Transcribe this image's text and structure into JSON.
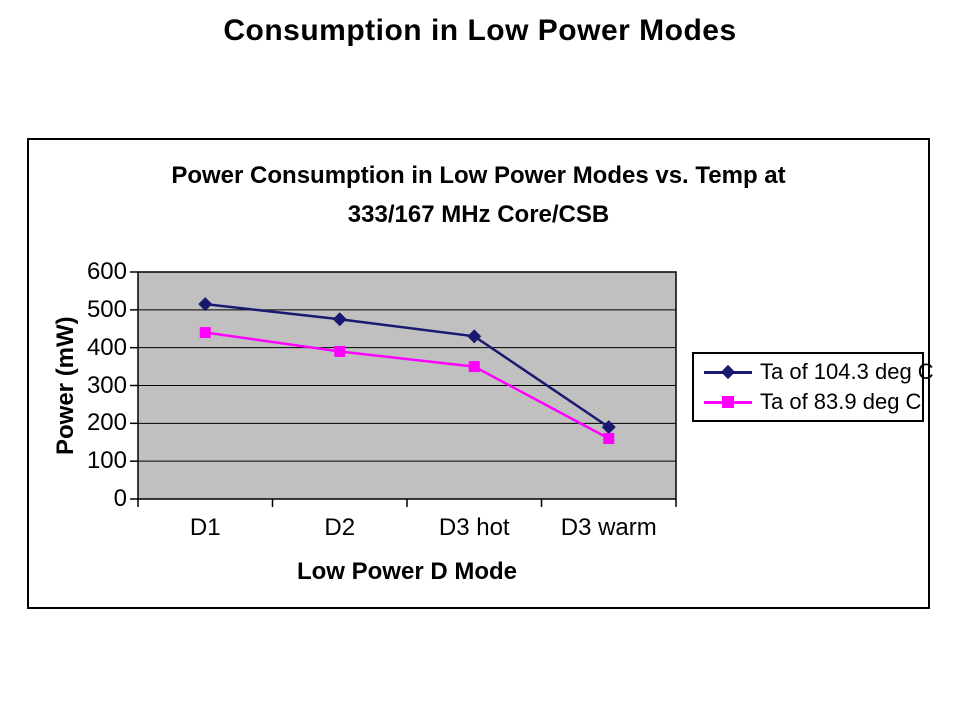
{
  "page_title": "Consumption in Low Power Modes",
  "chart_data": {
    "type": "line",
    "title_line1": "Power Consumption in Low Power Modes vs. Temp at",
    "title_line2": "333/167 MHz Core/CSB",
    "xlabel": "Low Power D Mode",
    "ylabel": "Power (mW)",
    "categories": [
      "D1",
      "D2",
      "D3 hot",
      "D3 warm"
    ],
    "series": [
      {
        "name": "Ta of 104.3 deg C",
        "color": "#191970",
        "marker": "diamond",
        "values": [
          515,
          475,
          430,
          190
        ]
      },
      {
        "name": "Ta of 83.9 deg C",
        "color": "#FF00FF",
        "marker": "square",
        "values": [
          440,
          390,
          350,
          160
        ]
      }
    ],
    "ylim": [
      0,
      600
    ],
    "ytick_step": 100,
    "grid": true,
    "grid_color": "#000000",
    "plot_bg": "#C0C0C0",
    "legend_position": "right"
  }
}
